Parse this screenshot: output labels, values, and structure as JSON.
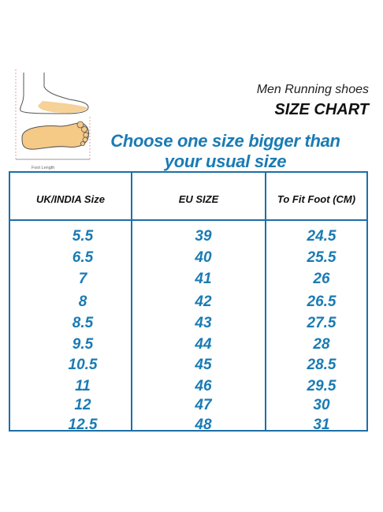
{
  "illustration": {
    "caption": "Foot Length"
  },
  "header": {
    "subtitle": "Men Running shoes",
    "title": "SIZE CHART"
  },
  "tagline": {
    "line1": "Choose one size bigger than",
    "line2": "your usual size"
  },
  "table": {
    "columns": [
      "UK/INDIA Size",
      "EU SIZE",
      "To Fit Foot (CM)"
    ],
    "rows": [
      [
        "5.5",
        "39",
        "24.5"
      ],
      [
        "6.5",
        "40",
        "25.5"
      ],
      [
        "7",
        "41",
        "26"
      ],
      [
        "8",
        "42",
        "26.5"
      ],
      [
        "8.5",
        "43",
        "27.5"
      ],
      [
        "9.5",
        "44",
        "28"
      ],
      [
        "10.5",
        "45",
        "28.5"
      ],
      [
        "11",
        "46",
        "29.5"
      ],
      [
        "12",
        "47",
        "30"
      ],
      [
        "12.5",
        "48",
        "31"
      ]
    ]
  },
  "colors": {
    "accent": "#1a7bb4",
    "border": "#1e6fa6"
  }
}
